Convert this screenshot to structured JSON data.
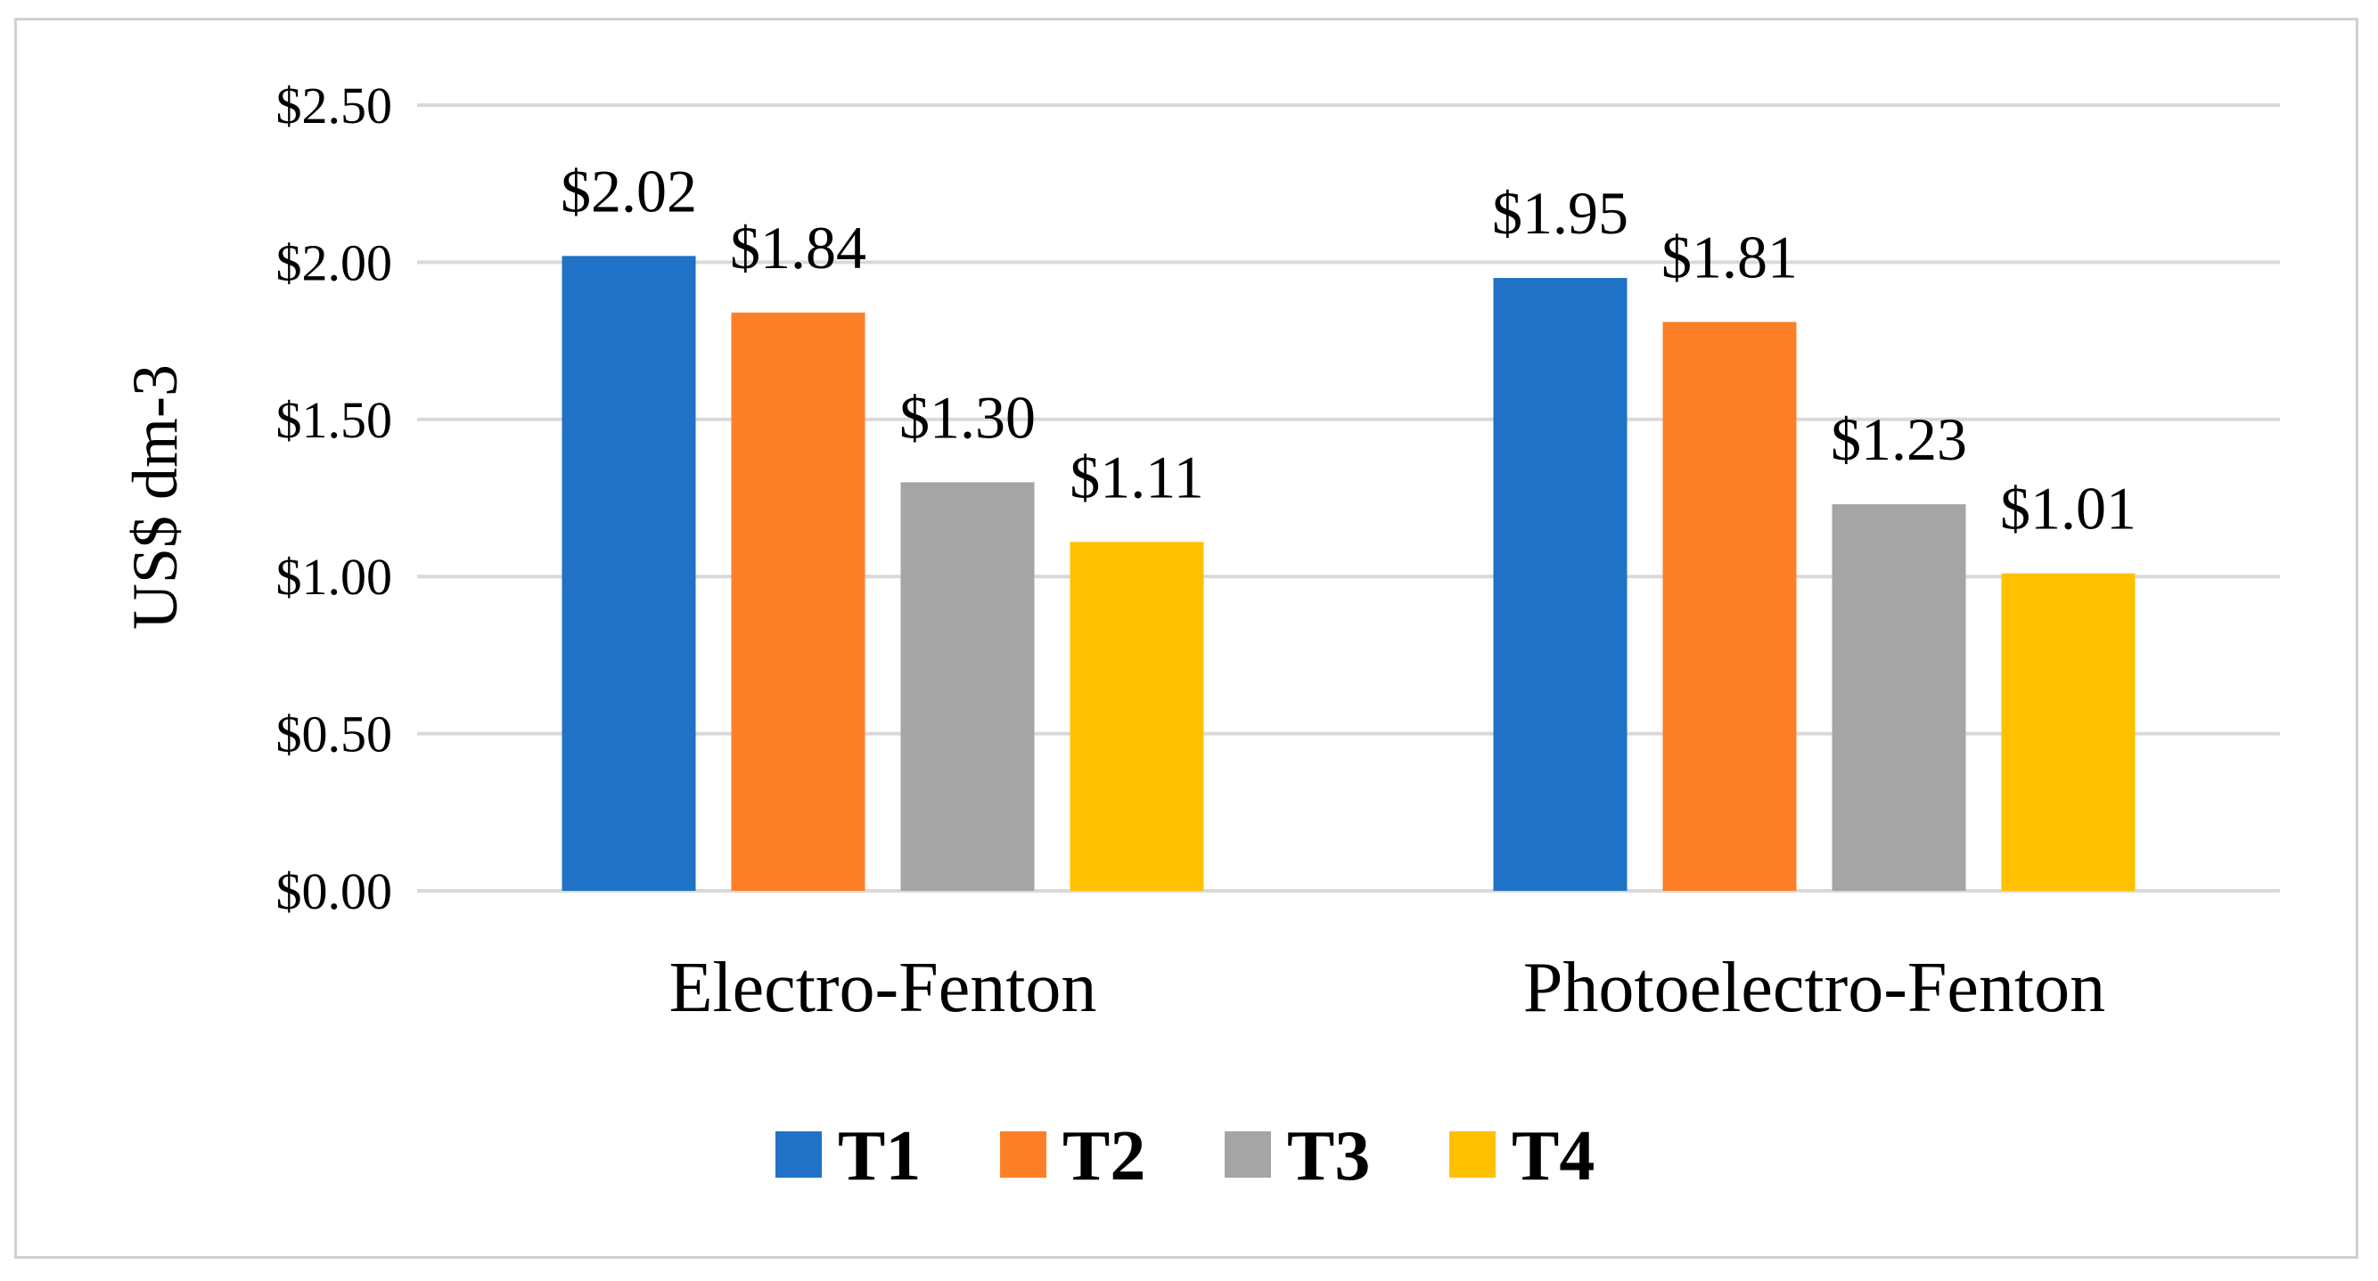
{
  "chart_data": {
    "type": "bar",
    "title": "",
    "xlabel": "",
    "ylabel": "US$ dm-3",
    "ylim": [
      0,
      2.5
    ],
    "yticks": [
      0,
      0.5,
      1.0,
      1.5,
      2.0,
      2.5
    ],
    "ytick_labels": [
      "$0.00",
      "$0.50",
      "$1.00",
      "$1.50",
      "$2.00",
      "$2.50"
    ],
    "grid": true,
    "legend_position": "bottom",
    "categories": [
      "Electro-Fenton",
      "Photoelectro-Fenton"
    ],
    "series": [
      {
        "name": "T1",
        "color": "#1f72c6",
        "values": [
          2.02,
          1.95
        ],
        "labels": [
          "$2.02",
          "$1.95"
        ]
      },
      {
        "name": "T2",
        "color": "#fd7f28",
        "values": [
          1.84,
          1.81
        ],
        "labels": [
          "$1.84",
          "$1.81"
        ]
      },
      {
        "name": "T3",
        "color": "#a5a5a5",
        "values": [
          1.3,
          1.23
        ],
        "labels": [
          "$1.30",
          "$1.23"
        ]
      },
      {
        "name": "T4",
        "color": "#ffc000",
        "values": [
          1.11,
          1.01
        ],
        "labels": [
          "$1.11",
          "$1.01"
        ]
      }
    ]
  }
}
